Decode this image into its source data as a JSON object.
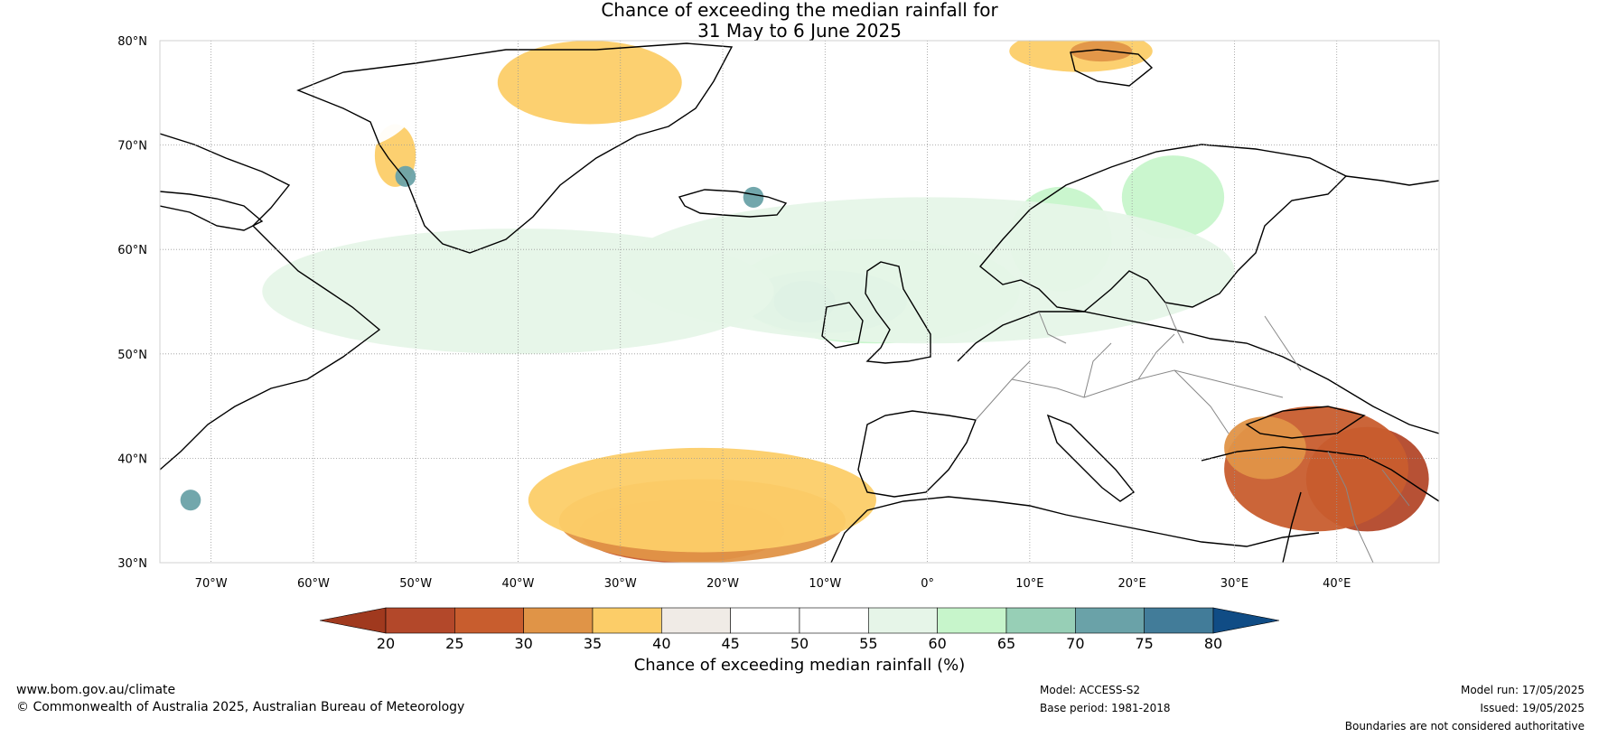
{
  "title": {
    "line1": "Chance of exceeding the median rainfall for",
    "line2": "31 May to 6 June 2025"
  },
  "map": {
    "lat_labels": [
      "80°N",
      "70°N",
      "60°N",
      "50°N",
      "40°N",
      "30°N"
    ],
    "lon_labels": [
      "70°W",
      "60°W",
      "50°W",
      "40°W",
      "30°W",
      "20°W",
      "10°W",
      "0°",
      "10°E",
      "20°E",
      "30°E",
      "40°E"
    ],
    "lat_range": [
      30,
      80
    ],
    "lon_range": [
      -75,
      50
    ],
    "gridlines": true,
    "regions": [
      {
        "category": "20-25",
        "lon": 43,
        "lat": 38,
        "rlon": 6,
        "rlat": 5
      },
      {
        "category": "25-30",
        "lon": 38,
        "lat": 39,
        "rlon": 9,
        "rlat": 6
      },
      {
        "category": "25-30",
        "lon": -24,
        "lat": 33,
        "rlon": 10,
        "rlat": 3
      },
      {
        "category": "30-35",
        "lon": -22,
        "lat": 34,
        "rlon": 14,
        "rlat": 4
      },
      {
        "category": "35-40",
        "lon": -22,
        "lat": 36,
        "rlon": 17,
        "rlat": 5
      },
      {
        "category": "35-40",
        "lon": -33,
        "lat": 76,
        "rlon": 9,
        "rlat": 4
      },
      {
        "category": "35-40",
        "lon": 15,
        "lat": 79,
        "rlon": 7,
        "rlat": 2
      },
      {
        "category": "30-35",
        "lon": 17,
        "lat": 79,
        "rlon": 3,
        "rlat": 1
      },
      {
        "category": "35-40",
        "lon": -52,
        "lat": 69,
        "rlon": 2,
        "rlat": 3
      },
      {
        "category": "30-35",
        "lon": 33,
        "lat": 41,
        "rlon": 4,
        "rlat": 3
      },
      {
        "category": "60-65",
        "lon": -5,
        "lat": 56,
        "rlon": 14,
        "rlat": 5
      },
      {
        "category": "65-70",
        "lon": -10,
        "lat": 55,
        "rlon": 8,
        "rlat": 3
      },
      {
        "category": "70-75",
        "lon": -12,
        "lat": 55,
        "rlon": 3,
        "rlat": 2
      },
      {
        "category": "60-65",
        "lon": 13,
        "lat": 61,
        "rlon": 5,
        "rlat": 5
      },
      {
        "category": "60-65",
        "lon": 24,
        "lat": 65,
        "rlon": 5,
        "rlat": 4
      },
      {
        "category": "55-60",
        "lon": 0,
        "lat": 58,
        "rlon": 30,
        "rlat": 7
      },
      {
        "category": "55-60",
        "lon": -40,
        "lat": 56,
        "rlon": 25,
        "rlat": 6
      },
      {
        "category": "45-50",
        "lon": -60,
        "lat": 74,
        "rlon": 10,
        "rlat": 5
      },
      {
        "category": "70-75",
        "lon": -51,
        "lat": 67,
        "rlon": 1,
        "rlat": 1
      },
      {
        "category": "70-75",
        "lon": -17,
        "lat": 65,
        "rlon": 1,
        "rlat": 1
      },
      {
        "category": "70-75",
        "lon": -72,
        "lat": 36,
        "rlon": 1,
        "rlat": 1
      }
    ]
  },
  "colorbar": {
    "ticks": [
      "20",
      "25",
      "30",
      "35",
      "40",
      "45",
      "50",
      "55",
      "60",
      "65",
      "70",
      "75",
      "80"
    ],
    "colors": [
      "#a0391e",
      "#b3482a",
      "#c85d2e",
      "#e09447",
      "#fccd68",
      "#f0ebe6",
      "#ffffff",
      "#ffffff",
      "#e6f5e8",
      "#c7f5cb",
      "#97cfb6",
      "#6aa2a8",
      "#427c99",
      "#104c85"
    ],
    "label": "Chance of exceeding median rainfall (%)"
  },
  "footer": {
    "website": "www.bom.gov.au/climate",
    "copyright": "© Commonwealth of Australia 2025, Australian Bureau of Meteorology",
    "model": "Model: ACCESS-S2",
    "base_period": "Base period: 1981-2018",
    "model_run": "Model run: 17/05/2025",
    "issued": "Issued: 19/05/2025",
    "disclaimer": "Boundaries are not considered authoritative"
  }
}
